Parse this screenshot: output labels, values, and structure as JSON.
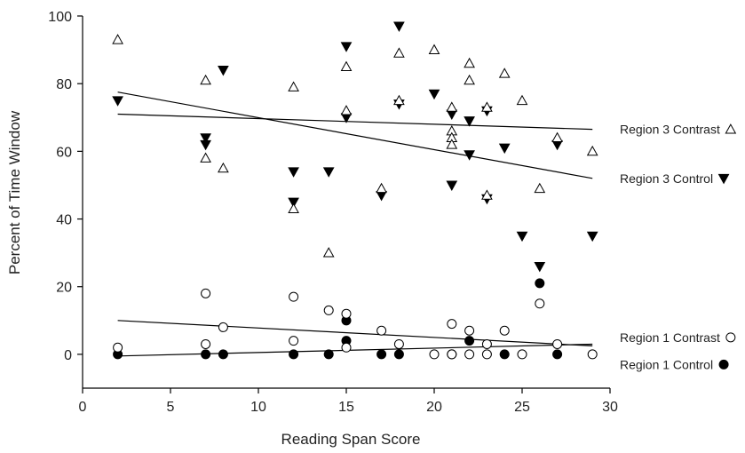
{
  "chart_data": {
    "type": "scatter",
    "xlabel": "Reading Span Score",
    "ylabel": "Percent of Time Window",
    "xlim": [
      0,
      30
    ],
    "ylim": [
      -10,
      100
    ],
    "x_ticks": [
      0,
      5,
      10,
      15,
      20,
      25,
      30
    ],
    "y_ticks": [
      0,
      20,
      40,
      60,
      80,
      100
    ],
    "legend_placement": "right, next to line ends",
    "grid": false,
    "series": [
      {
        "name": "Region 3 Contrast",
        "marker": "triangle-up-open",
        "color": "#000000",
        "points": [
          [
            2,
            93
          ],
          [
            7,
            81
          ],
          [
            7,
            58
          ],
          [
            8,
            55
          ],
          [
            12,
            79
          ],
          [
            12,
            43
          ],
          [
            14,
            30
          ],
          [
            15,
            72
          ],
          [
            15,
            85
          ],
          [
            17,
            49
          ],
          [
            18,
            89
          ],
          [
            18,
            75
          ],
          [
            20,
            90
          ],
          [
            21,
            73
          ],
          [
            21,
            66
          ],
          [
            21,
            64
          ],
          [
            21,
            62
          ],
          [
            22,
            86
          ],
          [
            22,
            81
          ],
          [
            23,
            73
          ],
          [
            23,
            47
          ],
          [
            24,
            83
          ],
          [
            25,
            75
          ],
          [
            26,
            49
          ],
          [
            27,
            64
          ],
          [
            29,
            60
          ]
        ],
        "fit_line": [
          [
            2,
            71
          ],
          [
            29,
            66.5
          ]
        ]
      },
      {
        "name": "Region 3 Control",
        "marker": "triangle-down-filled",
        "color": "#000000",
        "points": [
          [
            2,
            75
          ],
          [
            7,
            64
          ],
          [
            7,
            62
          ],
          [
            8,
            84
          ],
          [
            12,
            54
          ],
          [
            12,
            45
          ],
          [
            14,
            54
          ],
          [
            15,
            91
          ],
          [
            15,
            70
          ],
          [
            17,
            47
          ],
          [
            18,
            97
          ],
          [
            18,
            74
          ],
          [
            20,
            77
          ],
          [
            21,
            71
          ],
          [
            21,
            50
          ],
          [
            22,
            69
          ],
          [
            22,
            59
          ],
          [
            23,
            72
          ],
          [
            23,
            46
          ],
          [
            24,
            61
          ],
          [
            25,
            35
          ],
          [
            26,
            26
          ],
          [
            27,
            62
          ],
          [
            29,
            35
          ]
        ],
        "fit_line": [
          [
            2,
            77.5
          ],
          [
            29,
            52
          ]
        ]
      },
      {
        "name": "Region 1 Contrast",
        "marker": "circle-open",
        "color": "#000000",
        "points": [
          [
            2,
            2
          ],
          [
            7,
            18
          ],
          [
            7,
            3
          ],
          [
            8,
            8
          ],
          [
            12,
            17
          ],
          [
            12,
            4
          ],
          [
            14,
            13
          ],
          [
            15,
            12
          ],
          [
            15,
            2
          ],
          [
            17,
            7
          ],
          [
            18,
            3
          ],
          [
            20,
            0
          ],
          [
            21,
            9
          ],
          [
            21,
            0
          ],
          [
            22,
            7
          ],
          [
            22,
            0
          ],
          [
            23,
            3
          ],
          [
            23,
            0
          ],
          [
            24,
            7
          ],
          [
            25,
            0
          ],
          [
            26,
            15
          ],
          [
            27,
            3
          ],
          [
            29,
            0
          ]
        ],
        "fit_line": [
          [
            2,
            10
          ],
          [
            29,
            2.5
          ]
        ]
      },
      {
        "name": "Region 1 Control",
        "marker": "circle-filled",
        "color": "#000000",
        "points": [
          [
            2,
            0
          ],
          [
            7,
            0
          ],
          [
            8,
            0
          ],
          [
            12,
            0
          ],
          [
            14,
            0
          ],
          [
            15,
            10
          ],
          [
            15,
            4
          ],
          [
            17,
            0
          ],
          [
            18,
            0
          ],
          [
            21,
            0
          ],
          [
            22,
            4
          ],
          [
            24,
            0
          ],
          [
            26,
            21
          ],
          [
            27,
            0
          ]
        ],
        "fit_line": [
          [
            2,
            -0.5
          ],
          [
            29,
            3
          ]
        ]
      }
    ],
    "legend": [
      {
        "label": "Region 3 Contrast",
        "marker": "triangle-up-open",
        "anchor_y": 66.5
      },
      {
        "label": "Region 3 Control",
        "marker": "triangle-down-filled",
        "anchor_y": 52
      },
      {
        "label": "Region 1 Contrast",
        "marker": "circle-open",
        "anchor_y": 5
      },
      {
        "label": "Region 1 Control",
        "marker": "circle-filled",
        "anchor_y": -3
      }
    ]
  }
}
